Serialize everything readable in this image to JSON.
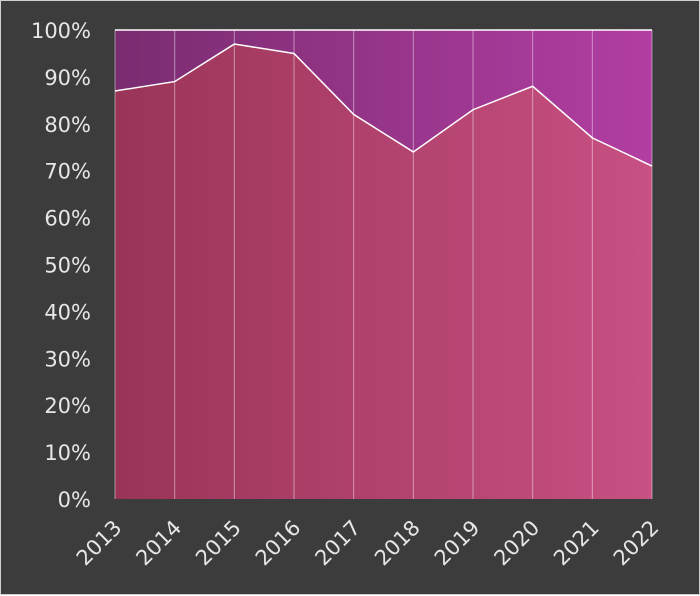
{
  "chart_data": {
    "type": "area",
    "stacked": true,
    "percent": true,
    "title": "",
    "xlabel": "",
    "ylabel": "",
    "categories": [
      "2013",
      "2014",
      "2015",
      "2016",
      "2017",
      "2018",
      "2019",
      "2020",
      "2021",
      "2022"
    ],
    "series": [
      {
        "values": [
          87,
          89,
          97,
          95,
          82,
          74,
          83,
          88,
          77,
          71
        ]
      },
      {
        "values": [
          13,
          11,
          3,
          5,
          18,
          26,
          17,
          12,
          23,
          29
        ]
      }
    ],
    "ylim": [
      0,
      100
    ],
    "yticks": [
      "0%",
      "10%",
      "20%",
      "30%",
      "40%",
      "50%",
      "60%",
      "70%",
      "80%",
      "90%",
      "100%"
    ],
    "grid": "vertical",
    "legend": "none",
    "colors": {
      "background": "#3c3c3c",
      "lower_start": "#9a3458",
      "lower_end": "#c85083",
      "upper_start": "#7a2c70",
      "upper_end": "#b23ea3",
      "line": "#ffffff",
      "text": "#e6e6e6"
    }
  }
}
